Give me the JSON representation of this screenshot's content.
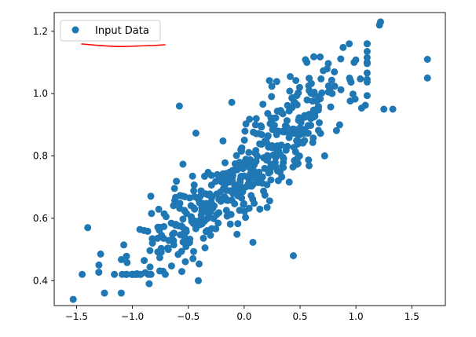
{
  "chart_data": {
    "type": "scatter",
    "title": "",
    "xlabel": "",
    "ylabel": "",
    "xlim": [
      -1.7,
      1.8
    ],
    "ylim": [
      0.32,
      1.26
    ],
    "grid": false,
    "legend_position": "top-left",
    "x_ticks": [
      {
        "value": -1.5,
        "label": "−1.5"
      },
      {
        "value": -1.0,
        "label": "−1.0"
      },
      {
        "value": -0.5,
        "label": "−0.5"
      },
      {
        "value": 0.0,
        "label": "0.0"
      },
      {
        "value": 0.5,
        "label": "0.5"
      },
      {
        "value": 1.0,
        "label": "1.0"
      },
      {
        "value": 1.5,
        "label": "1.5"
      }
    ],
    "y_ticks": [
      {
        "value": 0.4,
        "label": "0.4"
      },
      {
        "value": 0.6,
        "label": "0.6"
      },
      {
        "value": 0.8,
        "label": "0.8"
      },
      {
        "value": 1.0,
        "label": "1.0"
      },
      {
        "value": 1.2,
        "label": "1.2"
      }
    ],
    "series": [
      {
        "name": "Input Data",
        "color": "#1f77b4",
        "marker": "circle",
        "seed": 7,
        "n_points": 500,
        "x_mean": 0.0,
        "x_std": 0.5,
        "slope": 0.32,
        "intercept": 0.75,
        "noise_std": 0.08,
        "outliers": [
          {
            "x": -1.53,
            "y": 0.34
          },
          {
            "x": -1.25,
            "y": 0.36
          },
          {
            "x": -1.1,
            "y": 0.36
          },
          {
            "x": -0.85,
            "y": 0.39
          },
          {
            "x": -0.41,
            "y": 0.4
          },
          {
            "x": 0.44,
            "y": 0.48
          },
          {
            "x": 1.21,
            "y": 1.22
          },
          {
            "x": 1.22,
            "y": 1.23
          },
          {
            "x": 1.64,
            "y": 1.11
          },
          {
            "x": 1.64,
            "y": 1.05
          },
          {
            "x": 1.33,
            "y": 0.95
          },
          {
            "x": 1.25,
            "y": 0.95
          },
          {
            "x": -1.4,
            "y": 0.57
          },
          {
            "x": -1.3,
            "y": 0.45
          },
          {
            "x": -0.58,
            "y": 0.96
          }
        ]
      }
    ]
  },
  "annotation": {
    "type": "red-underline",
    "color": "#ff0000"
  }
}
